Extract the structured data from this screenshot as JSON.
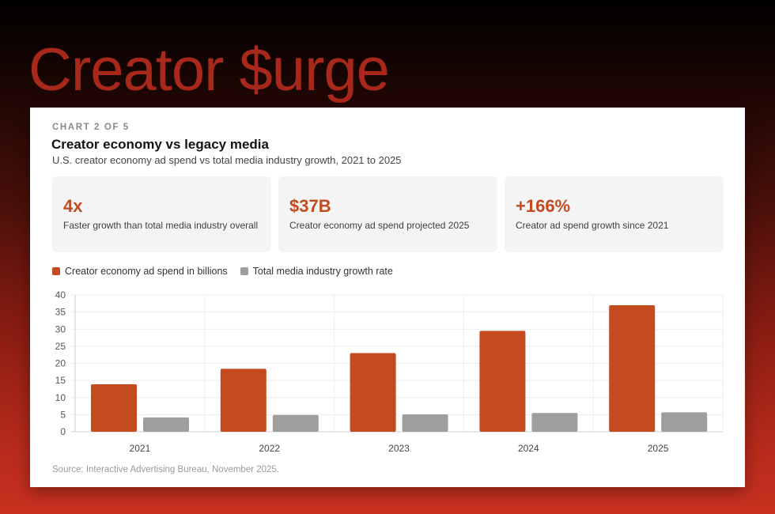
{
  "headline": "Creator $urge",
  "card": {
    "eyebrow": "CHART 2 OF 5",
    "title": "Creator economy vs legacy media",
    "subtitle": "U.S. creator economy ad spend vs total media industry growth, 2021 to 2025",
    "source": "Source: Interactive Advertising Bureau, November 2025."
  },
  "stats": [
    {
      "value": "4x",
      "label": "Faster growth than total media industry overall"
    },
    {
      "value": "$37B",
      "label": "Creator economy ad spend projected 2025"
    },
    {
      "value": "+166%",
      "label": "Creator ad spend growth since 2021"
    }
  ],
  "colors": {
    "accent": "#c34b1f",
    "secondary": "#9e9e9e",
    "headline": "#a8281b"
  },
  "chart_data": {
    "type": "bar",
    "title": "Creator economy vs legacy media",
    "categories": [
      "2021",
      "2022",
      "2023",
      "2024",
      "2025"
    ],
    "series": [
      {
        "name": "Creator economy ad spend in billions",
        "color": "#c34b1f",
        "values": [
          13.9,
          18.4,
          23.0,
          29.5,
          37.0
        ]
      },
      {
        "name": "Total media industry growth rate",
        "color": "#9e9e9e",
        "values": [
          4.2,
          4.9,
          5.1,
          5.5,
          5.7
        ]
      }
    ],
    "yticks": [
      0,
      5,
      10,
      15,
      20,
      25,
      30,
      35,
      40
    ],
    "ylim": [
      0,
      40
    ],
    "grid": true,
    "legend": "top-left",
    "xlabel": "",
    "ylabel": ""
  }
}
